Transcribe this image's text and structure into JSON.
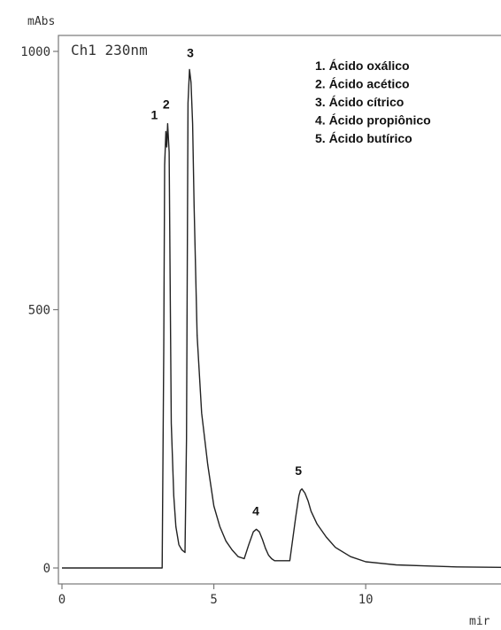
{
  "chart_data": {
    "type": "line",
    "ylabel": "mAbs",
    "xlabel": "mir",
    "channel_label": "Ch1 230nm",
    "xlim": [
      0,
      14.6
    ],
    "ylim": [
      0,
      1000
    ],
    "x_ticks": [
      0,
      5,
      10
    ],
    "x_tick_labels": [
      "0",
      "5",
      "10"
    ],
    "y_ticks": [
      0,
      500,
      1000
    ],
    "y_tick_labels": [
      "0",
      "500",
      "1000"
    ],
    "grid": false,
    "legend_position": "top-right",
    "legend": [
      "1. Ácido oxálico",
      "2. Ácido acético",
      "3. Ácido cítrico",
      "4. Ácido propiônico",
      "5. Ácido butírico"
    ],
    "peak_labels": [
      {
        "label": "1",
        "x": 3.45,
        "y": 845
      },
      {
        "label": "2",
        "x": 3.55,
        "y": 865
      },
      {
        "label": "3",
        "x": 4.4,
        "y": 965
      },
      {
        "label": "4",
        "x": 6.5,
        "y": 75
      },
      {
        "label": "5",
        "x": 7.9,
        "y": 153
      }
    ],
    "series": [
      {
        "x": [
          0,
          3.2,
          3.3,
          3.35,
          3.38,
          3.42,
          3.45,
          3.48,
          3.53,
          3.56,
          3.6,
          3.68,
          3.75,
          3.85,
          3.95,
          4.05,
          4.1,
          4.15,
          4.2,
          4.25,
          4.3,
          4.35,
          4.45,
          4.6,
          4.8,
          5.0,
          5.2,
          5.4,
          5.6,
          5.8,
          6.0,
          6.15,
          6.3,
          6.4,
          6.5,
          6.6,
          6.7,
          6.8,
          6.9,
          7.0,
          7.2,
          7.5,
          7.7,
          7.8,
          7.85,
          7.9,
          8.0,
          8.1,
          8.2,
          8.4,
          8.7,
          9.0,
          9.5,
          10.0,
          11.0,
          12.0,
          13.0,
          14.6
        ],
        "y": [
          0,
          0,
          0,
          420,
          780,
          845,
          815,
          860,
          805,
          560,
          280,
          140,
          80,
          45,
          35,
          30,
          250,
          900,
          965,
          940,
          860,
          700,
          450,
          300,
          200,
          120,
          80,
          52,
          35,
          22,
          18,
          45,
          70,
          75,
          70,
          55,
          38,
          25,
          18,
          14,
          14,
          14,
          100,
          140,
          150,
          153,
          145,
          130,
          110,
          85,
          60,
          40,
          22,
          12,
          6,
          4,
          2,
          1
        ]
      }
    ]
  }
}
